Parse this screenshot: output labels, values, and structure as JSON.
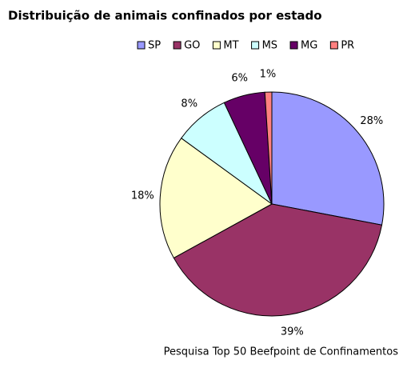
{
  "chart_data": {
    "type": "pie",
    "title": "Distribuição de animais confinados por estado",
    "source": "Pesquisa Top 50 Beefpoint de Confinamentos",
    "categories": [
      "SP",
      "GO",
      "MT",
      "MS",
      "MG",
      "PR"
    ],
    "values": [
      28,
      39,
      18,
      8,
      6,
      1
    ],
    "value_labels": [
      "28%",
      "39%",
      "18%",
      "8%",
      "6%",
      "1%"
    ],
    "colors": [
      "#9999ff",
      "#993366",
      "#ffffcc",
      "#ccffff",
      "#660066",
      "#ff8080"
    ]
  }
}
